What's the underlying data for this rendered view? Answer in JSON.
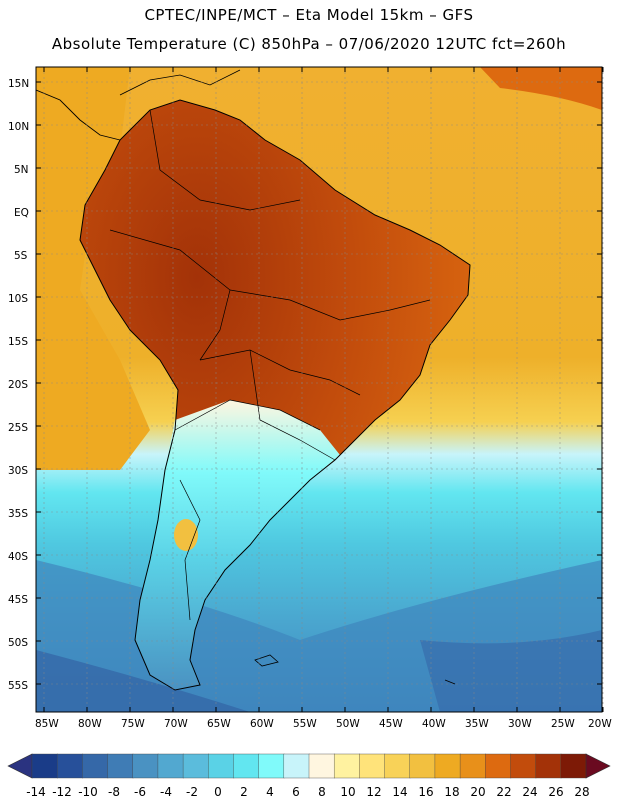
{
  "header": {
    "title_line1": "CPTEC/INPE/MCT –  Eta Model 15km – GFS",
    "title_line2": "Absolute Temperature (C) 850hPa – 07/06/2020 12UTC fct=260h"
  },
  "axes": {
    "lat_labels": [
      "15N",
      "10N",
      "5N",
      "EQ",
      "5S",
      "10S",
      "15S",
      "20S",
      "25S",
      "30S",
      "35S",
      "40S",
      "45S",
      "50S",
      "55S"
    ],
    "lon_labels": [
      "85W",
      "80W",
      "75W",
      "70W",
      "65W",
      "60W",
      "55W",
      "50W",
      "45W",
      "40W",
      "35W",
      "30W",
      "25W",
      "20W"
    ]
  },
  "colorbar": {
    "labels": [
      "-14",
      "-12",
      "-10",
      "-8",
      "-6",
      "-4",
      "-2",
      "0",
      "2",
      "4",
      "6",
      "8",
      "10",
      "12",
      "14",
      "16",
      "18",
      "20",
      "22",
      "24",
      "26",
      "28"
    ],
    "colors": [
      "#1a3c88",
      "#27509a",
      "#3568a8",
      "#3f7cb5",
      "#4a92c2",
      "#52a8d0",
      "#5bbcdc",
      "#5ad2e6",
      "#62e6f0",
      "#80fafa",
      "#c8f4fa",
      "#fff6e0",
      "#fff2a0",
      "#ffe37a",
      "#f8d258",
      "#f2c040",
      "#eeaa22",
      "#e8901a",
      "#dd6a10",
      "#c24c0c",
      "#a33208",
      "#7d1a06"
    ],
    "under_color": "#2a3380",
    "over_color": "#6a0a20"
  },
  "map": {
    "ocean_north_color": "#f0b030",
    "ocean_south_color": "#4fb8d8",
    "continent_hot_color": "#b34a10"
  }
}
